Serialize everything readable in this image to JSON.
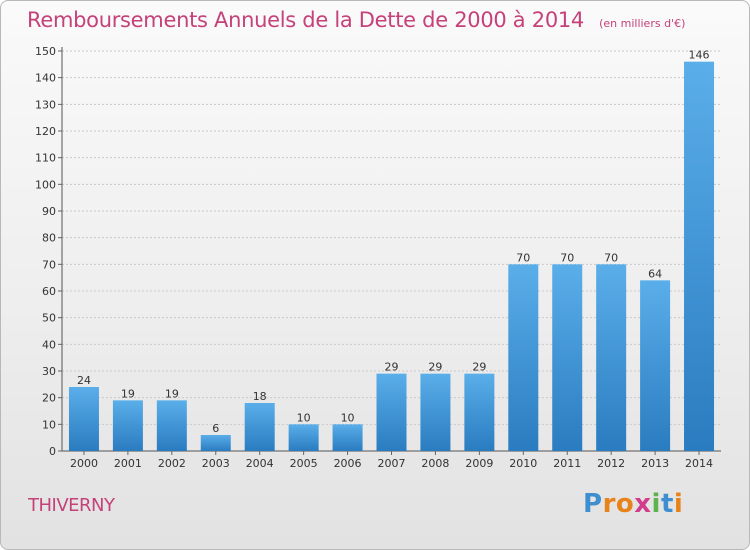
{
  "header": {
    "title": "Remboursements Annuels de la Dette de 2000 à 2014",
    "unit": "(en milliers d'€)"
  },
  "footer": {
    "city": "THIVERNY",
    "logo": [
      "P",
      "r",
      "o",
      "x",
      "i",
      "t",
      "i"
    ],
    "logo_colors": [
      "#3f8fd0",
      "#e8831c",
      "#e8831c",
      "#d23c8c",
      "#5fb24d",
      "#3f8fd0",
      "#e8831c"
    ]
  },
  "colors": {
    "title": "#c5417a",
    "bar_light": "#5aaee9",
    "bar_dark": "#2a7cc0",
    "grid": "#c9c9c9"
  },
  "chart_data": {
    "type": "bar",
    "categories": [
      "2000",
      "2001",
      "2002",
      "2003",
      "2004",
      "2005",
      "2006",
      "2007",
      "2008",
      "2009",
      "2010",
      "2011",
      "2012",
      "2013",
      "2014"
    ],
    "values": [
      24,
      19,
      19,
      6,
      18,
      10,
      10,
      29,
      29,
      29,
      70,
      70,
      70,
      64,
      146
    ],
    "title": "Remboursements Annuels de la Dette de 2000 à 2014",
    "ylim": [
      0,
      150
    ],
    "yticks": [
      0,
      10,
      20,
      30,
      40,
      50,
      60,
      70,
      80,
      90,
      100,
      110,
      120,
      130,
      140,
      150
    ],
    "grid": true
  }
}
